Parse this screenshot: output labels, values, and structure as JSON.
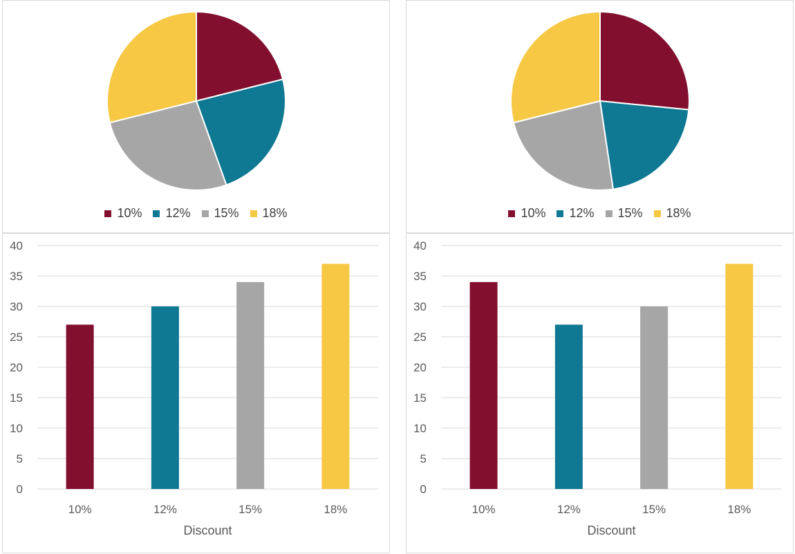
{
  "colors": {
    "d10": "#820f2e",
    "d12": "#0f7892",
    "d15": "#a6a6a6",
    "d18": "#f7c844",
    "grid": "#d9d9d9"
  },
  "chart_data": [
    {
      "type": "pie",
      "categories": [
        "10%",
        "12%",
        "15%",
        "18%"
      ],
      "values": [
        27,
        30,
        34,
        37
      ],
      "legend": [
        "10%",
        "12%",
        "15%",
        "18%"
      ],
      "legend_position": "bottom"
    },
    {
      "type": "pie",
      "categories": [
        "10%",
        "12%",
        "15%",
        "18%"
      ],
      "values": [
        34,
        27,
        30,
        37
      ],
      "legend": [
        "10%",
        "12%",
        "15%",
        "18%"
      ],
      "legend_position": "bottom"
    },
    {
      "type": "bar",
      "categories": [
        "10%",
        "12%",
        "15%",
        "18%"
      ],
      "values": [
        27,
        30,
        34,
        37
      ],
      "xlabel": "Discount",
      "ylabel": "",
      "ylim": [
        0,
        40
      ],
      "yticks": [
        "0",
        "5",
        "10",
        "15",
        "20",
        "25",
        "30",
        "35",
        "40"
      ],
      "grid": true
    },
    {
      "type": "bar",
      "categories": [
        "10%",
        "12%",
        "15%",
        "18%"
      ],
      "values": [
        34,
        27,
        30,
        37
      ],
      "xlabel": "Discount",
      "ylabel": "",
      "ylim": [
        0,
        40
      ],
      "yticks": [
        "0",
        "5",
        "10",
        "15",
        "20",
        "25",
        "30",
        "35",
        "40"
      ],
      "grid": true
    }
  ]
}
